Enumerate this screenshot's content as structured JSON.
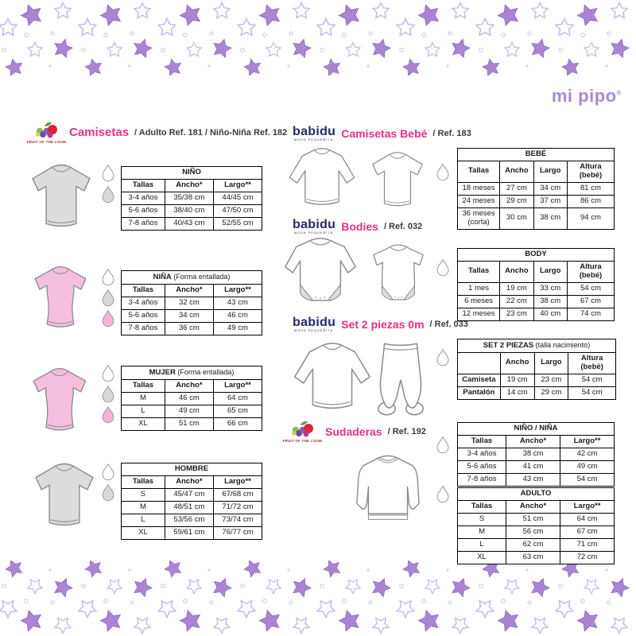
{
  "brand": {
    "mipipo": "mi pipo",
    "reg": "®"
  },
  "logos": {
    "fol": "FRUIT OF THE LOOM.",
    "babidu": "babidu",
    "babidu_sub": "MODA PEQUEÑITA"
  },
  "icons": {
    "drop": "laundry-water-drop",
    "star": "decor-star"
  },
  "colors": {
    "accent_pink": "#e62e8b",
    "logo_purple": "#a78ad0",
    "babidu_navy": "#252a63",
    "shirt_gray": "#dcdcdc",
    "shirt_pink": "#f4bedf",
    "star_purple": "#aa85d4"
  },
  "sections": {
    "camisetas": {
      "title": "Camisetas",
      "ref": "/ Adulto Ref. 181 / Niño-Niña Ref. 182"
    },
    "camisetas_bebe": {
      "title": "Camisetas Bebé",
      "ref": "/ Ref. 183"
    },
    "bodies": {
      "title": "Bodies",
      "ref": "/ Ref. 032"
    },
    "set2": {
      "title": "Set 2 piezas 0m",
      "ref": "/ Ref. 033"
    },
    "sudaderas": {
      "title": "Sudaderas",
      "ref": "/ Ref. 192"
    }
  },
  "tables": {
    "nino": {
      "title": "NIÑO",
      "note": "",
      "cols": [
        "Tallas",
        "Ancho*",
        "Largo**"
      ],
      "rows": [
        [
          "3-4 años",
          "35/38 cm",
          "44/45 cm"
        ],
        [
          "5-6 años",
          "38/40 cm",
          "47/50 cm"
        ],
        [
          "7-8 años",
          "40/43 cm",
          "52/55 cm"
        ]
      ]
    },
    "nina": {
      "title": "NIÑA",
      "note": "(Forma entallada)",
      "cols": [
        "Tallas",
        "Ancho*",
        "Largo**"
      ],
      "rows": [
        [
          "3-4 años",
          "32 cm",
          "43 cm"
        ],
        [
          "5-6 años",
          "34 cm",
          "46 cm"
        ],
        [
          "7-8 años",
          "36 cm",
          "49 cm"
        ]
      ]
    },
    "mujer": {
      "title": "MUJER",
      "note": "(Forma entallada)",
      "cols": [
        "Tallas",
        "Ancho*",
        "Largo**"
      ],
      "rows": [
        [
          "M",
          "46 cm",
          "64 cm"
        ],
        [
          "L",
          "49 cm",
          "65 cm"
        ],
        [
          "XL",
          "51 cm",
          "66 cm"
        ]
      ]
    },
    "hombre": {
      "title": "HOMBRE",
      "note": "",
      "cols": [
        "Tallas",
        "Ancho*",
        "Largo**"
      ],
      "rows": [
        [
          "S",
          "45/47 cm",
          "67/68 cm"
        ],
        [
          "M",
          "48/51 cm",
          "71/72 cm"
        ],
        [
          "L",
          "53/56 cm",
          "73/74 cm"
        ],
        [
          "XL",
          "59/61 cm",
          "76/77 cm"
        ]
      ]
    },
    "bebe": {
      "title": "BEBÉ",
      "note": "",
      "cols": [
        "Tallas",
        "Ancho",
        "Largo",
        "Altura (bebé)"
      ],
      "rows": [
        [
          "18 meses",
          "27 cm",
          "34 cm",
          "81 cm"
        ],
        [
          "24 meses",
          "29 cm",
          "37 cm",
          "86 cm"
        ],
        [
          "36 meses\n(corta)",
          "30 cm",
          "38 cm",
          "94 cm"
        ]
      ]
    },
    "body": {
      "title": "BODY",
      "note": "",
      "cols": [
        "Tallas",
        "Ancho",
        "Largo",
        "Altura (bebé)"
      ],
      "rows": [
        [
          "1 mes",
          "19 cm",
          "33 cm",
          "54 cm"
        ],
        [
          "6 meses",
          "22 cm",
          "38 cm",
          "67 cm"
        ],
        [
          "12 meses",
          "23 cm",
          "40 cm",
          "74 cm"
        ]
      ]
    },
    "set2": {
      "title": "SET 2 PIEZAS",
      "note": "(talla nacimiento)",
      "cols": [
        "",
        "Ancho",
        "Largo",
        "Altura (bebé)"
      ],
      "rows": [
        [
          "Camiseta",
          "19 cm",
          "23 cm",
          "54 cm"
        ],
        [
          "Pantalón",
          "14 cm",
          "29 cm",
          "54 cm"
        ]
      ]
    },
    "nino_nina": {
      "title": "NIÑO / NIÑA",
      "note": "",
      "cols": [
        "Tallas",
        "Ancho*",
        "Largo**"
      ],
      "rows": [
        [
          "3-4 años",
          "38 cm",
          "42 cm"
        ],
        [
          "5-6 años",
          "41 cm",
          "49 cm"
        ],
        [
          "7-8 años",
          "43 cm",
          "54 cm"
        ]
      ]
    },
    "adulto": {
      "title": "ADULTO",
      "note": "",
      "cols": [
        "Tallas",
        "Ancho*",
        "Largo**"
      ],
      "rows": [
        [
          "S",
          "51 cm",
          "64 cm"
        ],
        [
          "M",
          "56 cm",
          "67 cm"
        ],
        [
          "L",
          "62 cm",
          "71 cm"
        ],
        [
          "XL",
          "63 cm",
          "72 cm"
        ]
      ]
    }
  }
}
